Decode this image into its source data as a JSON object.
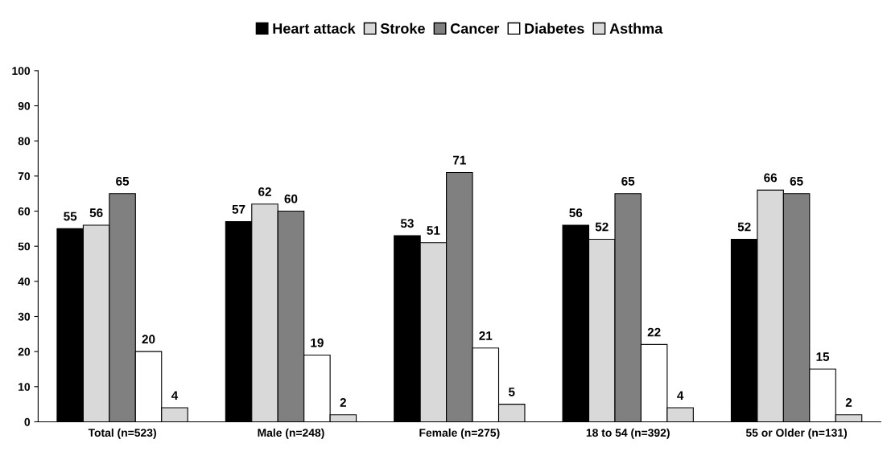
{
  "chart_data": {
    "type": "bar",
    "categories": [
      "Total (n=523)",
      "Male (n=248)",
      "Female (n=275)",
      "18 to 54 (n=392)",
      "55 or Older (n=131)"
    ],
    "series": [
      {
        "name": "Heart attack",
        "color": "#000000",
        "values": [
          55,
          57,
          53,
          56,
          52
        ]
      },
      {
        "name": "Stroke",
        "color": "#d9d9d9",
        "values": [
          56,
          62,
          51,
          52,
          66
        ]
      },
      {
        "name": "Cancer",
        "color": "#808080",
        "values": [
          65,
          60,
          71,
          65,
          65
        ]
      },
      {
        "name": "Diabetes",
        "color": "#ffffff",
        "values": [
          20,
          19,
          21,
          22,
          15
        ]
      },
      {
        "name": "Asthma",
        "color": "#d9d9d9",
        "values": [
          4,
          2,
          5,
          4,
          2
        ]
      }
    ],
    "ylim": [
      0,
      100
    ],
    "yticks": [
      0,
      10,
      20,
      30,
      40,
      50,
      60,
      70,
      80,
      90,
      100
    ],
    "grid": false,
    "legend": "top",
    "data_labels": true
  }
}
